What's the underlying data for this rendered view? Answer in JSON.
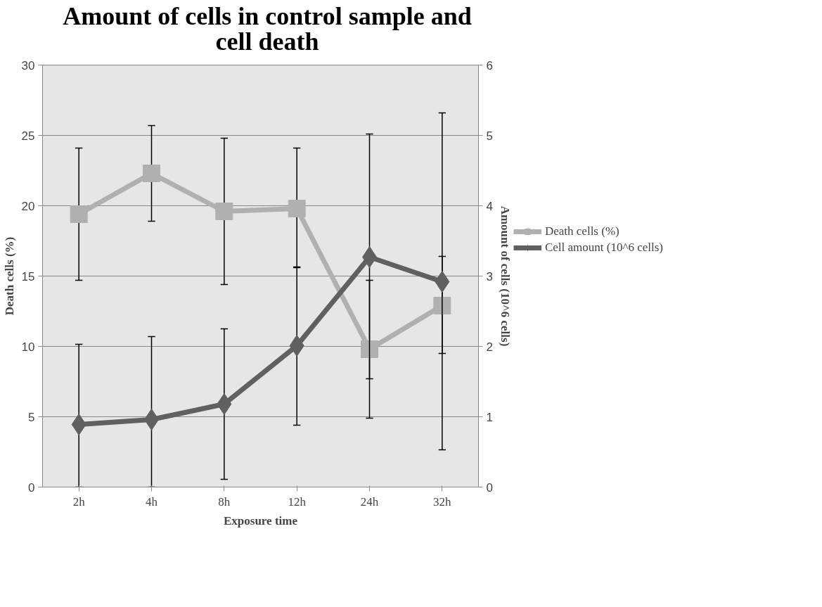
{
  "chart_data": {
    "type": "line",
    "title": "Amount of cells in control sample and cell death",
    "xlabel": "Exposure time",
    "ylabel": "Death cells (%)",
    "y2label": "Amount of cells (10^6 cells)",
    "categories": [
      "2h",
      "4h",
      "8h",
      "12h",
      "24h",
      "32h"
    ],
    "series": [
      {
        "name": "Death cells (%)",
        "color": "#b0b0b0",
        "marker": "square",
        "values": [
          19.4,
          22.3,
          19.6,
          19.8,
          9.8,
          12.9
        ],
        "errors": [
          [
            14.7,
            24.1
          ],
          [
            18.9,
            25.7
          ],
          [
            14.4,
            24.8
          ],
          [
            15.6,
            24.1
          ],
          [
            4.9,
            14.7
          ],
          [
            9.5,
            16.4
          ]
        ]
      },
      {
        "name": "Cell amount (10^6 cells)",
        "color": "#606060",
        "marker": "diamond",
        "axis": "y2",
        "values": [
          0.89,
          0.96,
          1.18,
          2.01,
          3.27,
          2.92
        ],
        "errors": [
          [
            0,
            2.03
          ],
          [
            0,
            2.14
          ],
          [
            0.11,
            2.25
          ],
          [
            0.88,
            3.13
          ],
          [
            1.54,
            5.02
          ],
          [
            0.53,
            5.32
          ]
        ]
      }
    ],
    "ylim": [
      0,
      30
    ],
    "yticks": [
      0,
      5,
      10,
      15,
      20,
      25,
      30
    ],
    "y2lim": [
      0,
      6
    ],
    "y2ticks": [
      0,
      1,
      2,
      3,
      4,
      5,
      6
    ],
    "grid": "y",
    "legend": "right",
    "line_style": "solid"
  }
}
